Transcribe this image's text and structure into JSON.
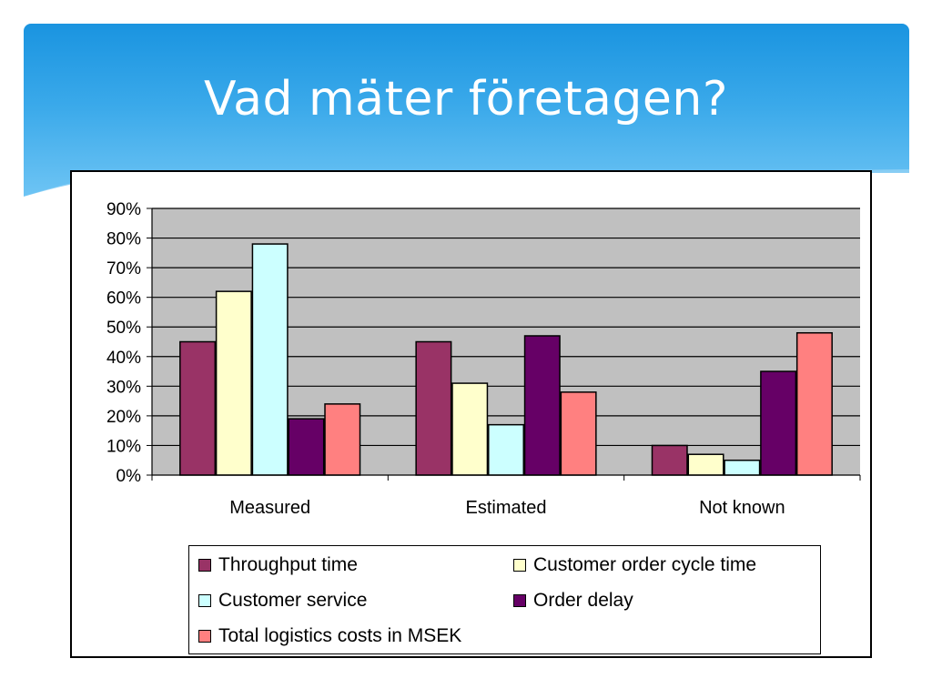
{
  "slide": {
    "title": "Vad mäter företagen?"
  },
  "chart_data": {
    "type": "bar",
    "categories": [
      "Measured",
      "Estimated",
      "Not known"
    ],
    "series": [
      {
        "name": "Throughput time",
        "color": "#993366",
        "values": [
          45,
          45,
          10
        ]
      },
      {
        "name": "Customer order cycle time",
        "color": "#ffffcc",
        "values": [
          62,
          31,
          7
        ]
      },
      {
        "name": "Customer service",
        "color": "#ccffff",
        "values": [
          78,
          17,
          5
        ]
      },
      {
        "name": "Order delay",
        "color": "#660066",
        "values": [
          19,
          47,
          35
        ]
      },
      {
        "name": "Total logistics costs in MSEK",
        "color": "#ff8080",
        "values": [
          24,
          28,
          48
        ]
      }
    ],
    "ylim": [
      0,
      90
    ],
    "yticks": [
      "0%",
      "10%",
      "20%",
      "30%",
      "40%",
      "50%",
      "60%",
      "70%",
      "80%",
      "90%"
    ],
    "plot_background": "#c0c0c0",
    "grid": true,
    "legend_position": "bottom"
  }
}
